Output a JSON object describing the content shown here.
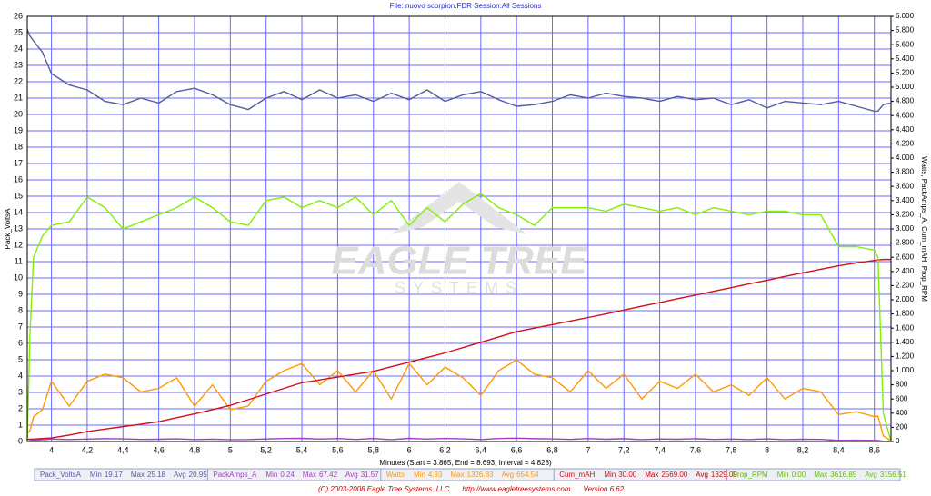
{
  "chart_data": {
    "type": "line",
    "title": "File: nuovo scorpion.FDR   Session:All Sessions",
    "x_label": "Minutes (Start = 3.865, End = 8.693, Interval = 4.828)",
    "y_label": "Pack_VoltsA",
    "y2_label": "Watts, PackAmps_A, Cum_mAH, Prop_RPM",
    "watermark": {
      "line1": "EAGLE TREE",
      "line2": "SYSTEMS"
    },
    "footer": {
      "copyright": "(C) 2003-2008 Eagle Tree Systems, LLC",
      "url": "http://www.eagletreesystems.com",
      "version": "Version 6.62"
    },
    "stat_labels": {
      "min": "Min",
      "max": "Max",
      "avg": "Avg"
    },
    "grid": true,
    "grid_color": "#6a6aff",
    "xlim": [
      3.865,
      8.693
    ],
    "xticks": [
      4,
      {
        "value": 4.2,
        "label": "4,2"
      },
      {
        "value": 4.4,
        "label": "4,4"
      },
      {
        "value": 4.6,
        "label": "4,6"
      },
      {
        "value": 4.8,
        "label": "4,8"
      },
      5,
      {
        "value": 5.2,
        "label": "5,2"
      },
      {
        "value": 5.4,
        "label": "5,4"
      },
      {
        "value": 5.6,
        "label": "5,6"
      },
      {
        "value": 5.8,
        "label": "5,8"
      },
      6,
      {
        "value": 6.2,
        "label": "6,2"
      },
      {
        "value": 6.4,
        "label": "6,4"
      },
      {
        "value": 6.6,
        "label": "6,6"
      },
      {
        "value": 6.8,
        "label": "6,8"
      },
      7,
      {
        "value": 7.2,
        "label": "7,2"
      },
      {
        "value": 7.4,
        "label": "7,4"
      },
      {
        "value": 7.6,
        "label": "7,6"
      },
      {
        "value": 7.8,
        "label": "7,8"
      },
      8,
      {
        "value": 8.2,
        "label": "8,2"
      },
      {
        "value": 8.4,
        "label": "8,4"
      },
      {
        "value": 8.6,
        "label": "8,6"
      }
    ],
    "ylim": [
      0,
      26
    ],
    "yticks": [
      0,
      1,
      2,
      3,
      4,
      5,
      6,
      7,
      8,
      9,
      10,
      11,
      12,
      13,
      14,
      15,
      16,
      17,
      18,
      19,
      20,
      21,
      22,
      23,
      24,
      25,
      26
    ],
    "y2lim": [
      0,
      6000
    ],
    "y2ticks": [
      0,
      200,
      400,
      600,
      800,
      {
        "value": 1000,
        "label": "1.000"
      },
      {
        "value": 1200,
        "label": "1.200"
      },
      {
        "value": 1400,
        "label": "1.400"
      },
      {
        "value": 1600,
        "label": "1.600"
      },
      {
        "value": 1800,
        "label": "1.800"
      },
      {
        "value": 2000,
        "label": "2.000"
      },
      {
        "value": 2200,
        "label": "2.200"
      },
      {
        "value": 2400,
        "label": "2.400"
      },
      {
        "value": 2600,
        "label": "2.600"
      },
      {
        "value": 2800,
        "label": "2.800"
      },
      {
        "value": 3000,
        "label": "3.000"
      },
      {
        "value": 3200,
        "label": "3.200"
      },
      {
        "value": 3400,
        "label": "3.400"
      },
      {
        "value": 3600,
        "label": "3.600"
      },
      {
        "value": 3800,
        "label": "3.800"
      },
      {
        "value": 4000,
        "label": "4.000"
      },
      {
        "value": 4200,
        "label": "4.200"
      },
      {
        "value": 4400,
        "label": "4.400"
      },
      {
        "value": 4600,
        "label": "4.600"
      },
      {
        "value": 4800,
        "label": "4.800"
      },
      {
        "value": 5000,
        "label": "5.000"
      },
      {
        "value": 5200,
        "label": "5.200"
      },
      {
        "value": 5400,
        "label": "5.400"
      },
      {
        "value": 5600,
        "label": "5.600"
      },
      {
        "value": 5800,
        "label": "5.800"
      },
      {
        "value": 6000,
        "label": "6.000"
      }
    ],
    "x": [
      3.865,
      3.88,
      3.9,
      3.95,
      4.0,
      4.1,
      4.2,
      4.3,
      4.4,
      4.5,
      4.6,
      4.7,
      4.8,
      4.9,
      5.0,
      5.1,
      5.2,
      5.3,
      5.4,
      5.5,
      5.6,
      5.7,
      5.8,
      5.9,
      6.0,
      6.1,
      6.2,
      6.3,
      6.4,
      6.5,
      6.6,
      6.7,
      6.8,
      6.9,
      7.0,
      7.1,
      7.2,
      7.3,
      7.4,
      7.5,
      7.6,
      7.7,
      7.8,
      7.9,
      8.0,
      8.1,
      8.2,
      8.3,
      8.4,
      8.5,
      8.6,
      8.62,
      8.65,
      8.693
    ],
    "series": [
      {
        "name": "Pack_VoltsA",
        "color": "#5a5a9c",
        "axis": "y",
        "min": "19.17",
        "max": "25.18",
        "avg": "20.95",
        "values": [
          25.2,
          24.8,
          24.5,
          23.8,
          22.5,
          21.8,
          21.5,
          20.8,
          20.6,
          21.0,
          20.7,
          21.4,
          21.6,
          21.2,
          20.6,
          20.3,
          21.0,
          21.4,
          20.9,
          21.5,
          21.0,
          21.2,
          20.8,
          21.3,
          20.9,
          21.5,
          20.8,
          21.2,
          21.4,
          20.9,
          20.5,
          20.6,
          20.8,
          21.2,
          21.0,
          21.3,
          21.1,
          21.0,
          20.8,
          21.1,
          20.9,
          21.0,
          20.6,
          20.9,
          20.4,
          20.8,
          20.7,
          20.6,
          20.8,
          20.5,
          20.2,
          20.2,
          20.6,
          20.7
        ]
      },
      {
        "name": "PackAmps_A",
        "color": "#a040c0",
        "axis": "y2",
        "min": "0.24",
        "max": "67.42",
        "avg": "31.57",
        "values": [
          0.24,
          10,
          20,
          25,
          35,
          28,
          35,
          40,
          38,
          30,
          32,
          38,
          28,
          33,
          26,
          28,
          36,
          42,
          45,
          34,
          42,
          30,
          42,
          26,
          45,
          34,
          44,
          38,
          28,
          42,
          47,
          40,
          38,
          30,
          42,
          32,
          40,
          26,
          36,
          32,
          40,
          30,
          34,
          28,
          38,
          26,
          32,
          30,
          16,
          18,
          15,
          15,
          3,
          0.24
        ]
      },
      {
        "name": "Watts",
        "color": "#ff9900",
        "axis": "y2",
        "min": "4.93",
        "max": "1326.83",
        "avg": "654.54",
        "values": [
          120,
          150,
          350,
          450,
          850,
          500,
          850,
          950,
          900,
          700,
          750,
          900,
          500,
          800,
          450,
          500,
          850,
          1000,
          1100,
          800,
          1000,
          700,
          1000,
          600,
          1100,
          800,
          1050,
          900,
          650,
          1000,
          1150,
          950,
          900,
          700,
          1000,
          750,
          950,
          600,
          850,
          750,
          950,
          700,
          800,
          650,
          900,
          600,
          750,
          700,
          380,
          420,
          350,
          360,
          80,
          10
        ]
      },
      {
        "name": "Cum_mAH",
        "color": "#d0101a",
        "axis": "y2",
        "min": "30.00",
        "max": "2569.00",
        "avg": "1329.09",
        "values": [
          30,
          32,
          35,
          42,
          50,
          90,
          140,
          175,
          210,
          245,
          280,
          335,
          390,
          450,
          510,
          590,
          670,
          750,
          830,
          870,
          910,
          950,
          990,
          1055,
          1120,
          1185,
          1250,
          1325,
          1400,
          1475,
          1550,
          1600,
          1650,
          1700,
          1750,
          1800,
          1855,
          1910,
          1960,
          2015,
          2065,
          2120,
          2170,
          2225,
          2275,
          2330,
          2380,
          2430,
          2480,
          2520,
          2555,
          2562,
          2569,
          2569
        ]
      },
      {
        "name": "Prop_RPM",
        "color": "#80f000",
        "axis": "y2",
        "min": "0.00",
        "max": "3616.85",
        "avg": "3156.51",
        "values": [
          0,
          1500,
          2600,
          2900,
          3050,
          3100,
          3450,
          3300,
          3000,
          3100,
          3200,
          3300,
          3450,
          3300,
          3100,
          3050,
          3400,
          3450,
          3300,
          3400,
          3300,
          3450,
          3200,
          3400,
          3050,
          3300,
          3100,
          3350,
          3500,
          3300,
          3200,
          3050,
          3300,
          3300,
          3300,
          3250,
          3350,
          3300,
          3250,
          3300,
          3200,
          3300,
          3250,
          3200,
          3250,
          3250,
          3200,
          3200,
          2750,
          2750,
          2700,
          2600,
          400,
          0
        ]
      }
    ]
  }
}
